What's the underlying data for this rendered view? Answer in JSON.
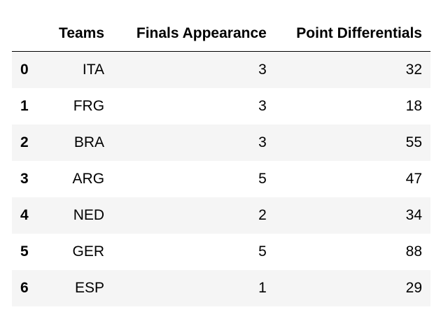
{
  "table": {
    "columns": [
      "",
      "Teams",
      "Finals Appearance",
      "Point Differentials"
    ],
    "rows": [
      {
        "index": "0",
        "team": "ITA",
        "finals": "3",
        "points": "32"
      },
      {
        "index": "1",
        "team": "FRG",
        "finals": "3",
        "points": "18"
      },
      {
        "index": "2",
        "team": "BRA",
        "finals": "3",
        "points": "55"
      },
      {
        "index": "3",
        "team": "ARG",
        "finals": "5",
        "points": "47"
      },
      {
        "index": "4",
        "team": "NED",
        "finals": "2",
        "points": "34"
      },
      {
        "index": "5",
        "team": "GER",
        "finals": "5",
        "points": "88"
      },
      {
        "index": "6",
        "team": "ESP",
        "finals": "1",
        "points": "29"
      }
    ]
  },
  "colors": {
    "stripe": "#f5f5f5",
    "background": "#ffffff",
    "text": "#000000"
  }
}
